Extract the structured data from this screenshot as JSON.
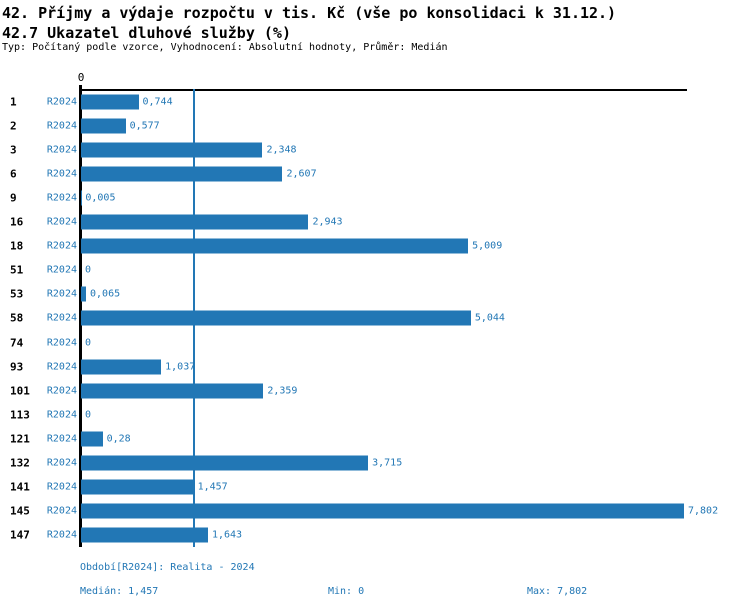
{
  "accent_color": "#2277b5",
  "chart_data": {
    "type": "bar",
    "orientation": "horizontal",
    "title": "42. Příjmy a výdaje rozpočtu v tis. Kč (vše po konsolidaci k 31.12.)",
    "subtitle": "42.7 Ukazatel dluhové služby (%)",
    "meta": "Typ: Počítaný podle vzorce, Vyhodnocení: Absolutní hodnoty, Průměr: Medián",
    "categories": [
      "1",
      "2",
      "3",
      "6",
      "9",
      "16",
      "18",
      "51",
      "53",
      "58",
      "74",
      "93",
      "101",
      "113",
      "121",
      "132",
      "141",
      "145",
      "147"
    ],
    "series_label": "R2024",
    "values": [
      0.744,
      0.577,
      2.348,
      2.607,
      0.005,
      2.943,
      5.009,
      0,
      0.065,
      5.044,
      0,
      1.037,
      2.359,
      0,
      0.28,
      3.715,
      1.457,
      7.802,
      1.643
    ],
    "value_labels": [
      "0,744",
      "0,577",
      "2,348",
      "2,607",
      "0,005",
      "2,943",
      "5,009",
      "0",
      "0,065",
      "5,044",
      "0",
      "1,037",
      "2,359",
      "0",
      "0,28",
      "3,715",
      "1,457",
      "7,802",
      "1,643"
    ],
    "xlim": [
      0,
      7.802
    ],
    "x_tick_labels": [
      "0"
    ],
    "median_value": 1.457,
    "grid": "median-line-only",
    "legend_position": "none"
  },
  "footer": {
    "period": "Období[R2024]: Realita - 2024",
    "median": "Medián: 1,457",
    "min": "Min: 0",
    "max": "Max: 7,802"
  }
}
